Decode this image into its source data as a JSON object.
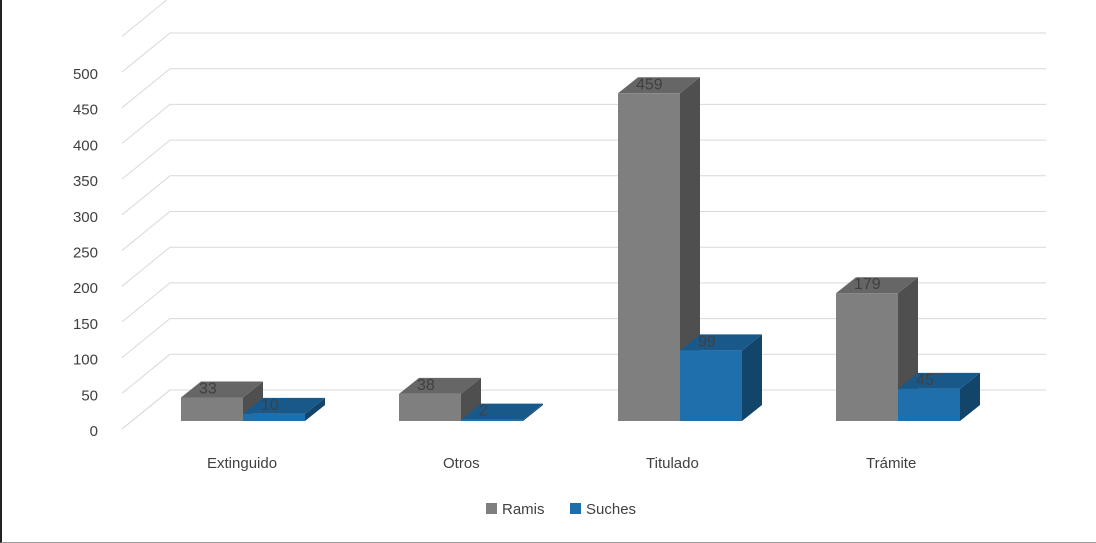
{
  "chart_data": {
    "type": "bar",
    "style": "3d-clustered-column",
    "categories": [
      "Extinguido",
      "Otros",
      "Titulado",
      "Trámite"
    ],
    "series": [
      {
        "name": "Ramis",
        "values": [
          33,
          38,
          459,
          179
        ],
        "color": "#7f7f7f"
      },
      {
        "name": "Suches",
        "values": [
          10,
          2,
          99,
          45
        ],
        "color": "#1f6fad"
      }
    ],
    "yticks": [
      0,
      50,
      100,
      150,
      200,
      250,
      300,
      350,
      400,
      450,
      500
    ],
    "ylim": [
      0,
      500
    ],
    "grid": true,
    "legend_position": "bottom",
    "data_labels": true
  }
}
